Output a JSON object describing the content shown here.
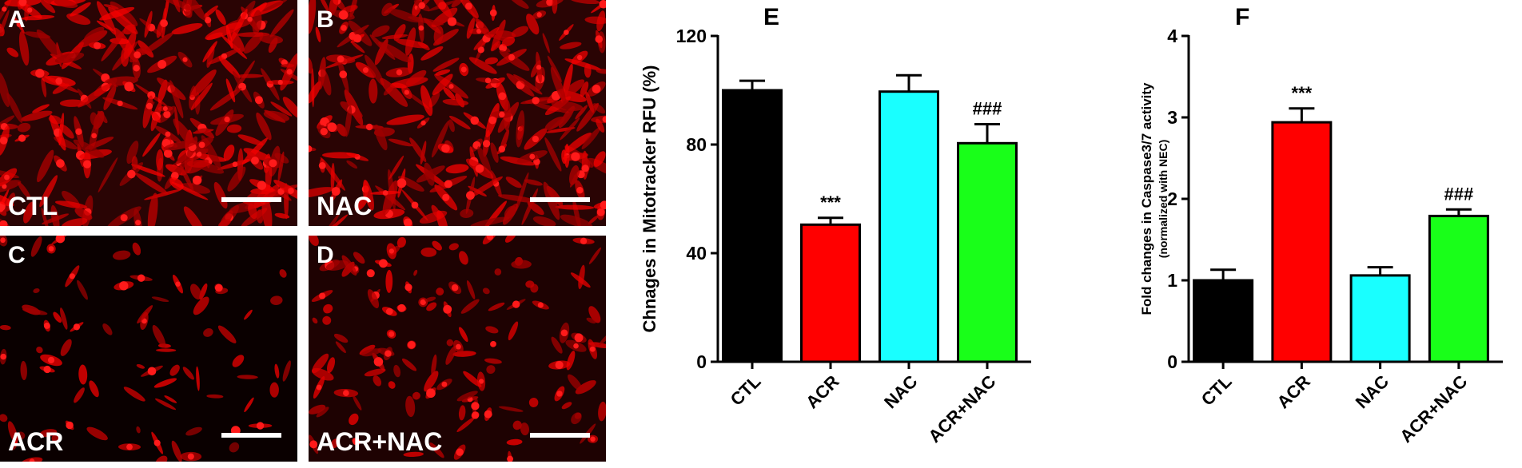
{
  "panels": [
    {
      "letter": "A",
      "label": "CTL"
    },
    {
      "letter": "B",
      "label": "NAC"
    },
    {
      "letter": "C",
      "label": "ACR"
    },
    {
      "letter": "D",
      "label": "ACR+NAC"
    }
  ],
  "chart_data": [
    {
      "type": "bar",
      "letter": "E",
      "ylabel": "Chnages in Mitotracker RFU (%)",
      "categories": [
        "CTL",
        "ACR",
        "NAC",
        "ACR+NAC"
      ],
      "values": [
        100,
        50.5,
        99.5,
        80.5
      ],
      "errors": [
        3.5,
        2.5,
        6,
        7
      ],
      "colors": [
        "#000000",
        "#ff0000",
        "#19ffff",
        "#19ff19"
      ],
      "annotations": [
        {
          "category": 1,
          "text": "***"
        },
        {
          "category": 3,
          "text": "###"
        }
      ],
      "ylim": [
        0,
        120
      ],
      "yticks": [
        0,
        40,
        80,
        120
      ]
    },
    {
      "type": "bar",
      "letter": "F",
      "ylabel": "Fold changes in Caspase3/7 activity",
      "ylabel_note": "(normalized with NEC)",
      "categories": [
        "CTL",
        "ACR",
        "NAC",
        "ACR+NAC"
      ],
      "values": [
        1.0,
        2.94,
        1.06,
        1.79
      ],
      "errors": [
        0.13,
        0.17,
        0.1,
        0.08
      ],
      "colors": [
        "#000000",
        "#ff0000",
        "#19ffff",
        "#19ff19"
      ],
      "annotations": [
        {
          "category": 1,
          "text": "***"
        },
        {
          "category": 3,
          "text": "###"
        }
      ],
      "ylim": [
        0,
        4
      ],
      "yticks": [
        0,
        1,
        2,
        3,
        4
      ]
    }
  ]
}
